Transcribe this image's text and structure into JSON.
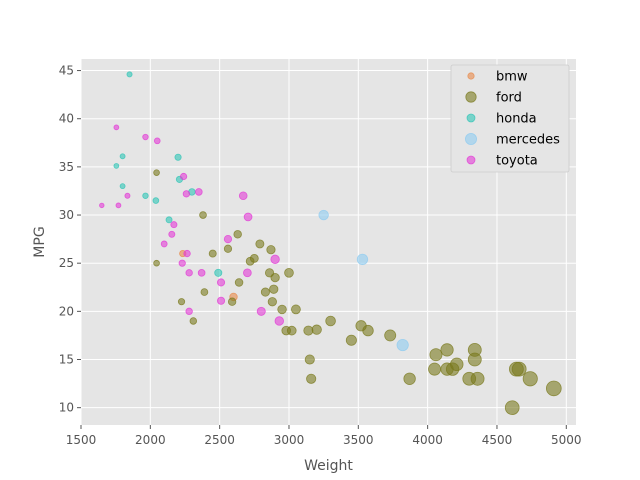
{
  "chart_data": {
    "type": "scatter",
    "title": "",
    "xlabel": "Weight",
    "ylabel": "MPG",
    "xlim": [
      1500,
      5070
    ],
    "ylim": [
      8.2,
      46.2
    ],
    "x_ticks": [
      1500,
      2000,
      2500,
      3000,
      3500,
      4000,
      4500,
      5000
    ],
    "y_ticks": [
      10,
      15,
      20,
      25,
      30,
      35,
      40,
      45
    ],
    "grid": true,
    "legend_position": "top-right",
    "colors": {
      "bmw": "#e8894a",
      "ford": "#7a7a1e",
      "honda": "#2ec4b6",
      "mercedes": "#8ecbf0",
      "toyota": "#e23ad6"
    },
    "series": [
      {
        "name": "bmw",
        "points": [
          [
            2234,
            26
          ],
          [
            2600,
            21.5
          ]
        ]
      },
      {
        "name": "ford",
        "points": [
          [
            2045,
            34.4
          ],
          [
            2045,
            25
          ],
          [
            2225,
            21
          ],
          [
            2310,
            19
          ],
          [
            2380,
            30
          ],
          [
            2390,
            22
          ],
          [
            2450,
            26
          ],
          [
            2560,
            26.5
          ],
          [
            2590,
            21
          ],
          [
            2630,
            28
          ],
          [
            2640,
            23
          ],
          [
            2720,
            25.2
          ],
          [
            2750,
            25.5
          ],
          [
            2790,
            27
          ],
          [
            2830,
            22
          ],
          [
            2860,
            24
          ],
          [
            2870,
            26.4
          ],
          [
            2880,
            21
          ],
          [
            2890,
            22.3
          ],
          [
            2900,
            23.5
          ],
          [
            2950,
            20.2
          ],
          [
            2980,
            18
          ],
          [
            3000,
            24
          ],
          [
            3020,
            18
          ],
          [
            3050,
            20.2
          ],
          [
            3140,
            18
          ],
          [
            3150,
            15
          ],
          [
            3160,
            13
          ],
          [
            3200,
            18.1
          ],
          [
            3300,
            19
          ],
          [
            3450,
            17
          ],
          [
            3520,
            18.5
          ],
          [
            3570,
            18
          ],
          [
            3730,
            17.5
          ],
          [
            3870,
            13
          ],
          [
            4050,
            14
          ],
          [
            4060,
            15.5
          ],
          [
            4140,
            16
          ],
          [
            4140,
            14
          ],
          [
            4180,
            14
          ],
          [
            4210,
            14.5
          ],
          [
            4300,
            13
          ],
          [
            4340,
            16
          ],
          [
            4340,
            15
          ],
          [
            4360,
            13
          ],
          [
            4610,
            10
          ],
          [
            4640,
            14
          ],
          [
            4660,
            14
          ],
          [
            4740,
            13
          ],
          [
            4910,
            12
          ]
        ]
      },
      {
        "name": "honda",
        "points": [
          [
            1755,
            35.1
          ],
          [
            1800,
            36.1
          ],
          [
            1800,
            33
          ],
          [
            1850,
            44.6
          ],
          [
            1965,
            32
          ],
          [
            2040,
            31.5
          ],
          [
            2135,
            29.5
          ],
          [
            2200,
            36
          ],
          [
            2210,
            33.7
          ],
          [
            2300,
            32.4
          ],
          [
            2490,
            24
          ]
        ]
      },
      {
        "name": "mercedes",
        "points": [
          [
            3250,
            30
          ],
          [
            3530,
            25.4
          ],
          [
            3820,
            16.5
          ]
        ]
      },
      {
        "name": "toyota",
        "points": [
          [
            1650,
            31
          ],
          [
            1755,
            39.1
          ],
          [
            1770,
            31
          ],
          [
            1835,
            32
          ],
          [
            1965,
            38.1
          ],
          [
            2050,
            37.7
          ],
          [
            2100,
            27
          ],
          [
            2155,
            28
          ],
          [
            2170,
            29
          ],
          [
            2230,
            25
          ],
          [
            2240,
            34
          ],
          [
            2260,
            32.2
          ],
          [
            2265,
            26
          ],
          [
            2280,
            24
          ],
          [
            2280,
            20
          ],
          [
            2350,
            32.4
          ],
          [
            2370,
            24
          ],
          [
            2510,
            23
          ],
          [
            2510,
            21.1
          ],
          [
            2560,
            27.5
          ],
          [
            2670,
            32
          ],
          [
            2700,
            24
          ],
          [
            2705,
            29.8
          ],
          [
            2800,
            20
          ],
          [
            2900,
            25.4
          ],
          [
            2930,
            19
          ]
        ]
      }
    ]
  }
}
